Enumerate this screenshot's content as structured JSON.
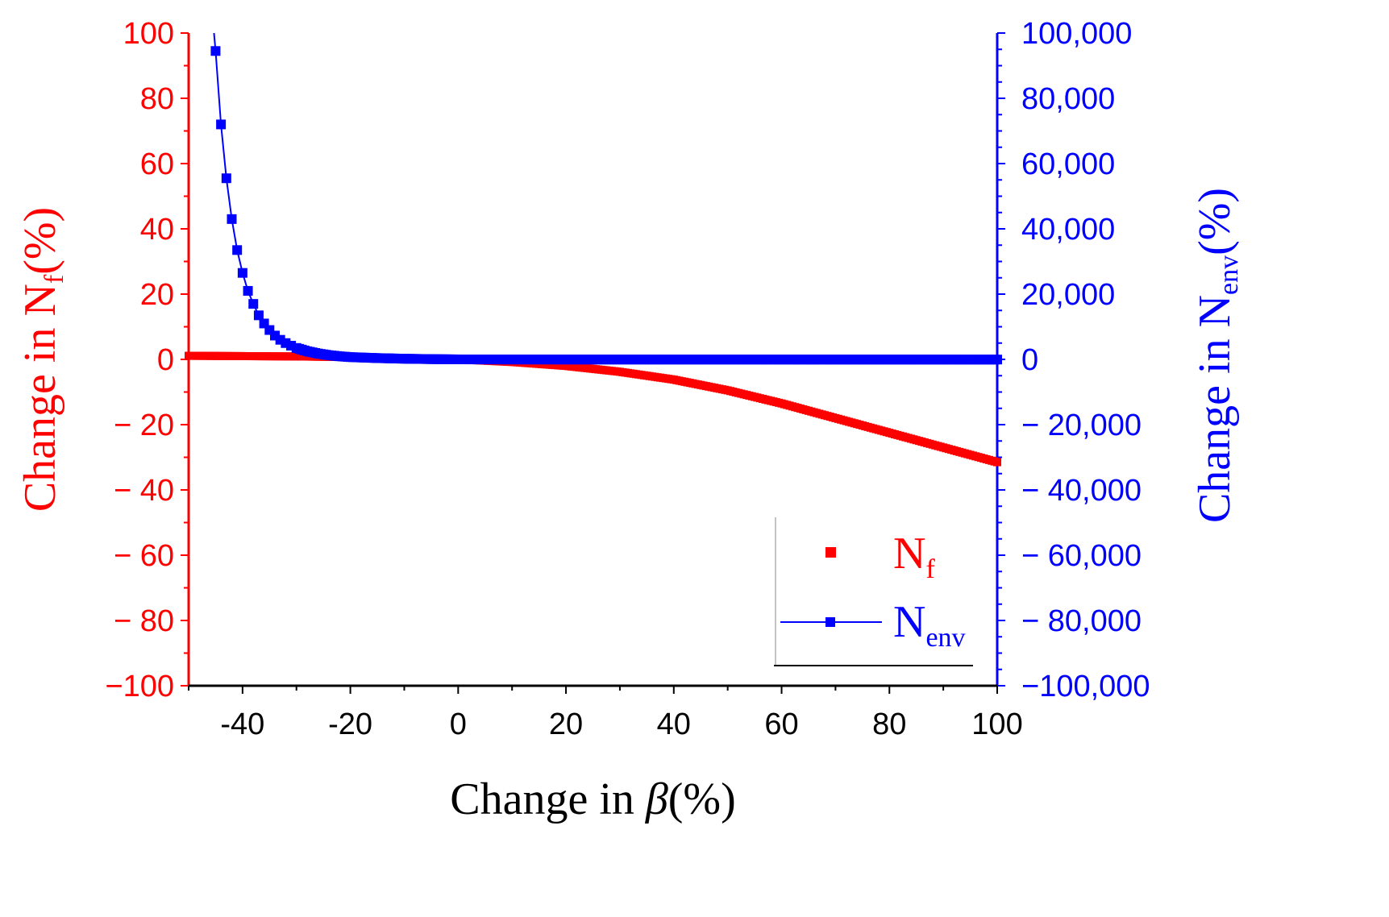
{
  "chart_data": {
    "type": "scatter",
    "x": {
      "label": "Change in β(%)",
      "label_prefix": "Change in ",
      "label_symbol": "β",
      "label_suffix": "(%)",
      "range": [
        -50,
        100
      ],
      "ticks": [
        -40,
        -20,
        0,
        20,
        40,
        60,
        80,
        100
      ],
      "tick_labels": [
        "-40",
        "-20",
        "0",
        "20",
        "40",
        "60",
        "80",
        "100"
      ]
    },
    "y_left": {
      "label": "Change in Nf(%)",
      "label_prefix": "Change in N",
      "label_sub": "f",
      "label_suffix": "(%)",
      "color": "#ff0000",
      "range": [
        -100,
        100
      ],
      "ticks": [
        -100,
        -80,
        -60,
        -40,
        -20,
        0,
        20,
        40,
        60,
        80,
        100
      ],
      "tick_labels": [
        "−100",
        "− 80",
        "− 60",
        "− 40",
        "− 20",
        "0",
        "20",
        "40",
        "60",
        "80",
        "100"
      ]
    },
    "y_right": {
      "label": "Change in Nenv(%)",
      "label_prefix": "Change in N",
      "label_sub": "env",
      "label_suffix": "(%)",
      "color": "#0000ff",
      "range": [
        -100000,
        100000
      ],
      "ticks": [
        -100000,
        -80000,
        -60000,
        -40000,
        -20000,
        0,
        20000,
        40000,
        60000,
        80000,
        100000
      ],
      "tick_labels": [
        "−100,000",
        "− 80,000",
        "− 60,000",
        "− 40,000",
        "− 20,000",
        "0",
        "20,000",
        "40,000",
        "60,000",
        "80,000",
        "100,000"
      ]
    },
    "series": [
      {
        "name": "Nf",
        "legend_main": "N",
        "legend_sub": "f",
        "axis": "left",
        "color": "#ff0000",
        "style": "markers",
        "x": [
          -50,
          -40,
          -30,
          -20,
          -10,
          0,
          10,
          20,
          30,
          40,
          50,
          60,
          70,
          80,
          90,
          100
        ],
        "y": [
          1.1,
          1.0,
          0.9,
          0.7,
          0.4,
          0,
          -0.8,
          -2.0,
          -3.8,
          -6.2,
          -9.5,
          -13.5,
          -18.0,
          -22.5,
          -27.0,
          -31.5
        ]
      },
      {
        "name": "Nenv",
        "legend_main": "N",
        "legend_sub": "env",
        "axis": "right",
        "color": "#0000ff",
        "style": "line+markers",
        "x": [
          -45,
          -44,
          -43,
          -42,
          -41,
          -40,
          -39,
          -38,
          -37,
          -36,
          -35,
          -34,
          -33,
          -32,
          -31,
          -30,
          -28,
          -26,
          -24,
          -22,
          -20,
          -15,
          -10,
          -5,
          0,
          10,
          20,
          40,
          60,
          80,
          100
        ],
        "y": [
          94500,
          72000,
          55500,
          43000,
          33500,
          26500,
          21000,
          17000,
          13500,
          11000,
          9000,
          7300,
          6000,
          5000,
          4200,
          3500,
          2500,
          1800,
          1300,
          950,
          700,
          400,
          200,
          80,
          0,
          -20,
          -30,
          -40,
          -45,
          -48,
          -50
        ]
      }
    ],
    "legend": "bottom-right"
  }
}
